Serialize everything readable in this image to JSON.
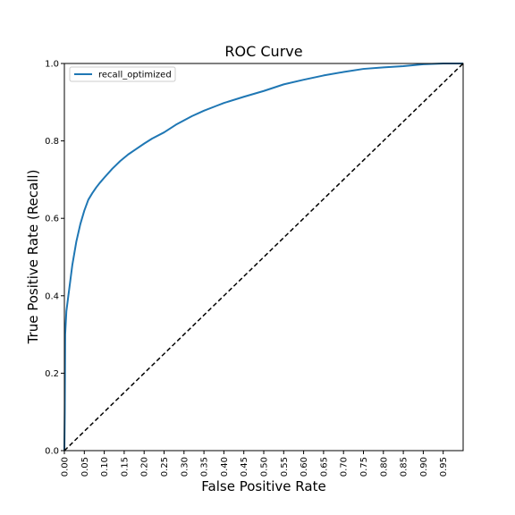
{
  "chart_data": {
    "type": "line",
    "title": "ROC Curve",
    "xlabel": "False Positive Rate",
    "ylabel": "True Positive Rate (Recall)",
    "xlim": [
      0,
      1
    ],
    "ylim": [
      0,
      1
    ],
    "x_ticks": [
      "0.00",
      "0.05",
      "0.10",
      "0.15",
      "0.20",
      "0.25",
      "0.30",
      "0.35",
      "0.40",
      "0.45",
      "0.50",
      "0.55",
      "0.60",
      "0.65",
      "0.70",
      "0.75",
      "0.80",
      "0.85",
      "0.90",
      "0.95"
    ],
    "y_ticks": [
      "0.0",
      "0.2",
      "0.4",
      "0.6",
      "0.8",
      "1.0"
    ],
    "grid": false,
    "legend_position": "top-left",
    "series": [
      {
        "name": "recall_optimized",
        "color": "#1f77b4",
        "x": [
          0,
          0.001,
          0.002,
          0.005,
          0.01,
          0.015,
          0.02,
          0.03,
          0.04,
          0.05,
          0.06,
          0.07,
          0.08,
          0.09,
          0.1,
          0.12,
          0.14,
          0.16,
          0.18,
          0.2,
          0.22,
          0.25,
          0.28,
          0.3,
          0.32,
          0.35,
          0.38,
          0.4,
          0.45,
          0.5,
          0.55,
          0.6,
          0.65,
          0.7,
          0.75,
          0.8,
          0.85,
          0.9,
          0.95,
          1.0
        ],
        "y": [
          0,
          0.1,
          0.3,
          0.36,
          0.4,
          0.44,
          0.48,
          0.54,
          0.585,
          0.62,
          0.648,
          0.665,
          0.68,
          0.693,
          0.705,
          0.728,
          0.748,
          0.765,
          0.779,
          0.793,
          0.806,
          0.822,
          0.842,
          0.853,
          0.864,
          0.878,
          0.89,
          0.898,
          0.914,
          0.929,
          0.946,
          0.958,
          0.969,
          0.978,
          0.986,
          0.99,
          0.993,
          0.998,
          1.0,
          1.0
        ]
      },
      {
        "name": "",
        "color": "#000000",
        "dashed": true,
        "x": [
          0,
          1
        ],
        "y": [
          0,
          1
        ]
      }
    ]
  }
}
